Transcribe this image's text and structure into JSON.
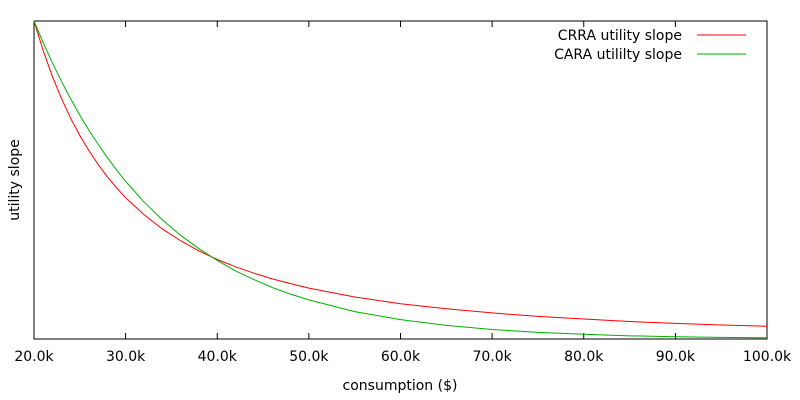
{
  "chart_data": {
    "type": "line",
    "title": "",
    "xlabel": "consumption ($)",
    "ylabel": "utility slope",
    "xlim": [
      20000,
      100000
    ],
    "ylim": [
      0,
      1
    ],
    "x_ticks": [
      20000,
      30000,
      40000,
      50000,
      60000,
      70000,
      80000,
      90000,
      100000
    ],
    "x_tick_labels": [
      "20.0k",
      "30.0k",
      "40.0k",
      "50.0k",
      "60.0k",
      "70.0k",
      "80.0k",
      "90.0k",
      "100.0k"
    ],
    "y_ticks_shown": false,
    "grid": false,
    "legend_position": "top-right",
    "series": [
      {
        "name": "CRRA utility slope",
        "color": "#ff0000",
        "x": [
          20000,
          21000,
          22000,
          23000,
          24000,
          25000,
          26000,
          27000,
          28000,
          29000,
          30000,
          32000,
          34000,
          36000,
          38000,
          40000,
          42000,
          44000,
          46000,
          48000,
          50000,
          55000,
          60000,
          65000,
          70000,
          75000,
          80000,
          85000,
          90000,
          95000,
          100000
        ],
        "y": [
          1.0,
          0.907,
          0.826,
          0.756,
          0.694,
          0.64,
          0.592,
          0.549,
          0.51,
          0.476,
          0.444,
          0.391,
          0.346,
          0.309,
          0.277,
          0.25,
          0.227,
          0.207,
          0.189,
          0.174,
          0.16,
          0.132,
          0.111,
          0.095,
          0.082,
          0.071,
          0.063,
          0.055,
          0.049,
          0.044,
          0.04
        ]
      },
      {
        "name": "CARA utililty slope",
        "color": "#00b000",
        "x": [
          20000,
          21000,
          22000,
          23000,
          24000,
          25000,
          26000,
          27000,
          28000,
          29000,
          30000,
          32000,
          34000,
          36000,
          38000,
          40000,
          42000,
          44000,
          46000,
          48000,
          50000,
          55000,
          60000,
          65000,
          70000,
          75000,
          80000,
          85000,
          90000,
          95000,
          100000
        ],
        "y": [
          1.0,
          0.932,
          0.869,
          0.81,
          0.755,
          0.704,
          0.656,
          0.612,
          0.571,
          0.532,
          0.496,
          0.431,
          0.375,
          0.326,
          0.284,
          0.247,
          0.214,
          0.187,
          0.162,
          0.141,
          0.123,
          0.086,
          0.061,
          0.043,
          0.03,
          0.021,
          0.015,
          0.01,
          0.007,
          0.005,
          0.004
        ]
      }
    ]
  }
}
